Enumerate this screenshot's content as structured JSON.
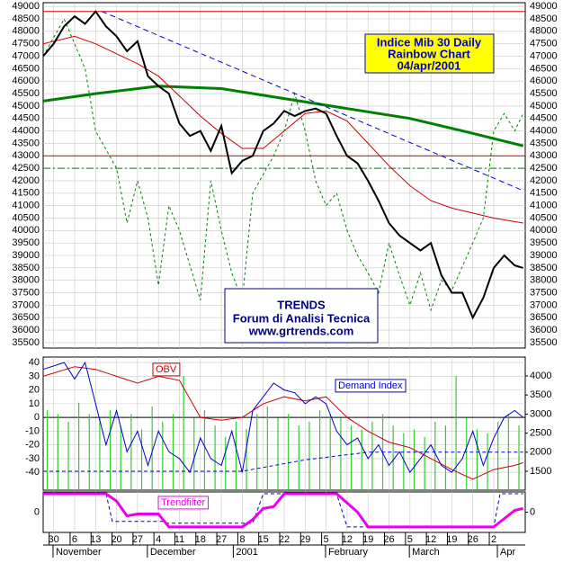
{
  "chart_data": [
    {
      "type": "line",
      "title": [
        "Indice Mib 30 Daily",
        "Rainbow  Chart",
        "04/apr/2001"
      ],
      "annotation": [
        "TRENDS",
        "Forum di Analisi Tecnica",
        "www.grtrends.com"
      ],
      "xlim": [
        -0.5,
        22.5
      ],
      "ylim": [
        35280,
        49150
      ],
      "yticks": [
        35500,
        36000,
        36500,
        37000,
        37500,
        38000,
        38500,
        39000,
        39500,
        40000,
        40500,
        41000,
        41500,
        42000,
        42500,
        43000,
        43500,
        44000,
        44500,
        45000,
        45500,
        46000,
        46500,
        47000,
        47500,
        48000,
        48500,
        49000
      ],
      "grid": true,
      "hlines": [
        {
          "value": 48800,
          "color": "#cc0000"
        },
        {
          "value": 43000,
          "color": "#cc0000"
        },
        {
          "value": 42500,
          "color": "#008000",
          "dash": "8,3,2,3"
        }
      ],
      "series": [
        {
          "color": "#008000",
          "width": 1,
          "dash": "3,3",
          "x": [
            -0.5,
            0.5,
            1.5,
            2,
            3,
            3.5,
            4,
            4.5,
            5,
            5.5,
            6,
            7,
            7.5,
            8,
            8.5,
            9,
            9.5,
            10.5,
            11,
            11.5,
            12,
            12.5,
            13,
            13.5,
            14,
            14.5,
            15,
            15.5,
            16,
            16.5,
            17,
            17.5,
            18,
            18.5,
            19,
            20,
            20.5,
            21,
            21.5,
            22,
            22.4
          ],
          "values": [
            47000,
            48500,
            46500,
            44000,
            42500,
            40300,
            42000,
            40500,
            37800,
            41000,
            40000,
            37200,
            42000,
            40000,
            38300,
            37200,
            41500,
            43000,
            44000,
            45500,
            44000,
            42000,
            41000,
            41500,
            40000,
            39000,
            38300,
            37500,
            39500,
            38200,
            37000,
            38300,
            36800,
            38000,
            37600,
            39500,
            40500,
            44000,
            44700,
            44000,
            44700
          ]
        },
        {
          "color": "#008000",
          "width": 3,
          "x": [
            -0.5,
            2,
            5,
            8,
            11,
            14,
            17,
            20,
            22.4
          ],
          "values": [
            45200,
            45500,
            45800,
            45700,
            45300,
            44900,
            44500,
            43900,
            43400
          ]
        },
        {
          "color": "#cc0000",
          "width": 1,
          "x": [
            -0.5,
            1,
            2,
            3,
            4,
            5,
            6,
            7,
            8,
            9,
            10,
            11,
            12,
            13,
            14,
            15,
            16,
            17,
            18,
            19,
            20,
            21,
            22.4
          ],
          "values": [
            47500,
            47800,
            47500,
            47100,
            46700,
            46200,
            45400,
            44600,
            43900,
            43300,
            43300,
            44000,
            44700,
            44800,
            44400,
            43500,
            42600,
            41800,
            41200,
            40900,
            40700,
            40500,
            40300
          ]
        },
        {
          "color": "#0000cc",
          "width": 1,
          "dash": "6,4",
          "x": [
            2.3,
            22.4
          ],
          "values": [
            48800,
            41600
          ]
        },
        {
          "color": "#000000",
          "width": 2,
          "x": [
            -0.5,
            0,
            0.5,
            1,
            1.5,
            2,
            2.5,
            3,
            3.5,
            4,
            4.5,
            5,
            5.5,
            6,
            6.5,
            7,
            7.5,
            8,
            8.5,
            9,
            9.5,
            10,
            10.5,
            11,
            11.5,
            12,
            12.5,
            13,
            13.5,
            14,
            14.5,
            15,
            15.5,
            16,
            16.5,
            17,
            17.5,
            18,
            18.5,
            19,
            19.5,
            20,
            20.5,
            21,
            21.5,
            22,
            22.4
          ],
          "values": [
            47000,
            47500,
            48200,
            48600,
            48300,
            48800,
            48200,
            47800,
            47200,
            47600,
            46200,
            45800,
            45500,
            44300,
            43800,
            44000,
            43200,
            44200,
            42300,
            42800,
            43000,
            44000,
            44300,
            44800,
            44600,
            44800,
            44900,
            44700,
            43800,
            43000,
            42700,
            42000,
            41200,
            40300,
            39800,
            39500,
            39200,
            39500,
            38200,
            37500,
            37500,
            36500,
            37300,
            38500,
            39000,
            38600,
            38500
          ]
        }
      ]
    },
    {
      "type": "line",
      "xlim": [
        -0.5,
        22.5
      ],
      "ylim": [
        -53,
        44
      ],
      "yticks": [
        -40,
        -30,
        -20,
        -10,
        0,
        10,
        20,
        30,
        40
      ],
      "y2lim": [
        1005,
        4495
      ],
      "y2ticks": [
        1500,
        2000,
        2500,
        3000,
        3500,
        4000
      ],
      "grid": true,
      "hlines": [
        {
          "value": 0,
          "color": "#000000"
        }
      ],
      "series": [
        {
          "type": "bar",
          "axis": "y2",
          "color": "#33cc33",
          "x": [
            -0.3,
            0.2,
            0.7,
            1.2,
            1.7,
            2.2,
            2.7,
            3.2,
            3.7,
            4.2,
            4.7,
            5.2,
            5.7,
            6.2,
            6.7,
            7.2,
            7.7,
            8.2,
            8.7,
            9.2,
            9.7,
            10.2,
            10.7,
            11.2,
            11.7,
            12.2,
            12.7,
            13.2,
            13.7,
            14.2,
            14.7,
            15.2,
            15.7,
            16.2,
            16.7,
            17.2,
            17.7,
            18.2,
            18.7,
            19.2,
            19.7,
            20.2,
            20.7,
            21.2,
            21.7,
            22.2
          ],
          "values": [
            3100,
            3000,
            2800,
            3300,
            3000,
            2900,
            3100,
            2700,
            3000,
            2600,
            3200,
            2800,
            3000,
            4000,
            2900,
            3100,
            2700,
            2400,
            2800,
            2600,
            3000,
            3200,
            2900,
            3000,
            2700,
            2800,
            3100,
            3000,
            2900,
            2700,
            2600,
            2800,
            3000,
            2700,
            2500,
            2600,
            2400,
            2800,
            2700,
            4000,
            2900,
            2600,
            2500,
            2800,
            3000,
            2700
          ]
        },
        {
          "axis": "y2",
          "color": "#0000cc",
          "dash": "4,3",
          "width": 1,
          "x": [
            -0.5,
            9,
            12,
            15,
            22.4
          ],
          "values": [
            1500,
            1500,
            1800,
            2000,
            2000
          ]
        },
        {
          "name": "OBV",
          "color": "#cc0000",
          "width": 1,
          "x": [
            -0.5,
            1,
            2,
            3,
            4,
            5,
            6,
            7,
            8,
            9,
            10,
            11,
            12,
            13,
            14,
            15,
            16,
            17,
            18,
            19,
            20,
            21,
            22,
            22.4
          ],
          "values": [
            30,
            37,
            35,
            30,
            25,
            30,
            27,
            0,
            -2,
            0,
            10,
            15,
            12,
            15,
            0,
            -10,
            -18,
            -22,
            -30,
            -38,
            -45,
            -38,
            -35,
            -33
          ]
        },
        {
          "name": "Demand Index",
          "color": "#0000cc",
          "width": 1,
          "x": [
            -0.5,
            0.5,
            1,
            1.5,
            2,
            2.5,
            3,
            3.5,
            4,
            4.5,
            5,
            5.5,
            6,
            6.5,
            7,
            7.5,
            8,
            8.5,
            9,
            9.5,
            10,
            10.5,
            11,
            11.5,
            12,
            12.5,
            13,
            13.5,
            14,
            14.5,
            15,
            15.5,
            16,
            16.5,
            17,
            17.5,
            18,
            18.5,
            19,
            19.5,
            20,
            20.5,
            21,
            21.5,
            22,
            22.4
          ],
          "values": [
            35,
            40,
            28,
            40,
            10,
            -20,
            5,
            -25,
            -10,
            -35,
            -10,
            -25,
            -30,
            -40,
            -15,
            -30,
            -35,
            -10,
            -40,
            5,
            15,
            25,
            20,
            18,
            10,
            15,
            10,
            -10,
            -20,
            -15,
            -30,
            -20,
            -35,
            -25,
            -40,
            -30,
            -20,
            -35,
            -40,
            -30,
            -10,
            -35,
            -15,
            0,
            5,
            0
          ]
        }
      ]
    },
    {
      "type": "line",
      "xlim": [
        -0.5,
        22.5
      ],
      "ylim": [
        -1.1,
        1.1
      ],
      "yticks": [
        0
      ],
      "y2lim": [
        -1.1,
        1.1
      ],
      "y2ticks": [
        0
      ],
      "grid": false,
      "series": [
        {
          "color": "#0000cc",
          "dash": "4,3",
          "width": 1,
          "x": [
            -0.5,
            2.5,
            2.8,
            5.2,
            5.4,
            9.5,
            10,
            13.5,
            14,
            21,
            21.3,
            22.4
          ],
          "values": [
            1,
            1,
            -0.5,
            -0.5,
            -0.6,
            -0.6,
            1,
            1,
            -0.8,
            -0.8,
            1,
            1
          ]
        },
        {
          "name": "Trendfilter",
          "color": "#ee00ee",
          "width": 3,
          "x": [
            -0.5,
            2.5,
            3,
            3.5,
            4,
            5,
            5.5,
            9,
            9.5,
            10,
            10.5,
            11,
            13.5,
            14.5,
            15,
            21,
            22,
            22.4
          ],
          "values": [
            1,
            1,
            0.6,
            -0.2,
            -0.1,
            -0.1,
            -0.8,
            -0.8,
            -0.4,
            0.2,
            0.3,
            1,
            1,
            0,
            -0.8,
            -0.8,
            0.1,
            0.2
          ]
        }
      ],
      "xticks": [
        {
          "value": 0,
          "label": "30"
        },
        {
          "value": 1,
          "label": "6"
        },
        {
          "value": 2,
          "label": "13"
        },
        {
          "value": 3,
          "label": "20"
        },
        {
          "value": 4,
          "label": "27"
        },
        {
          "value": 5,
          "label": "4"
        },
        {
          "value": 6,
          "label": "11"
        },
        {
          "value": 7,
          "label": "18"
        },
        {
          "value": 8,
          "label": "27"
        },
        {
          "value": 9,
          "label": "8"
        },
        {
          "value": 10,
          "label": "15"
        },
        {
          "value": 11,
          "label": "22"
        },
        {
          "value": 12,
          "label": "29"
        },
        {
          "value": 13,
          "label": "5"
        },
        {
          "value": 14,
          "label": "12"
        },
        {
          "value": 15,
          "label": "19"
        },
        {
          "value": 16,
          "label": "26"
        },
        {
          "value": 17,
          "label": "5"
        },
        {
          "value": 18,
          "label": "12"
        },
        {
          "value": 19,
          "label": "19"
        },
        {
          "value": 20,
          "label": "26"
        },
        {
          "value": 21,
          "label": "2"
        }
      ],
      "month_labels": [
        {
          "value": 0.1,
          "label": "November"
        },
        {
          "value": 4.6,
          "label": "December"
        },
        {
          "value": 8.7,
          "label": "2001"
        },
        {
          "value": 13.1,
          "label": "February"
        },
        {
          "value": 17.1,
          "label": "March"
        },
        {
          "value": 21.3,
          "label": "Apr"
        }
      ]
    }
  ]
}
